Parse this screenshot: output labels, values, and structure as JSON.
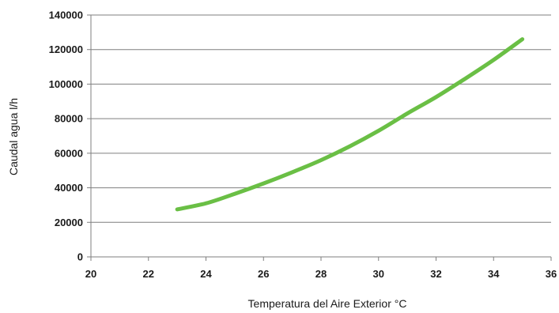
{
  "chart_data": {
    "type": "line",
    "xlabel": "Temperatura del  Aire Exterior °C",
    "ylabel": "Caudal agua l/h",
    "xlim": [
      20,
      36
    ],
    "ylim": [
      0,
      140000
    ],
    "x_ticks": [
      20,
      22,
      24,
      26,
      28,
      30,
      32,
      34,
      36
    ],
    "y_ticks": [
      0,
      20000,
      40000,
      60000,
      80000,
      100000,
      120000,
      140000
    ],
    "grid": "horizontal",
    "legend": "none",
    "series": [
      {
        "color": "#6abf45",
        "x": [
          23,
          24,
          25,
          26,
          27,
          28,
          29,
          30,
          31,
          32,
          33,
          34,
          35
        ],
        "y": [
          27500,
          31000,
          36500,
          42500,
          49000,
          56000,
          64000,
          73000,
          83000,
          92500,
          103000,
          114000,
          126000
        ]
      }
    ]
  }
}
